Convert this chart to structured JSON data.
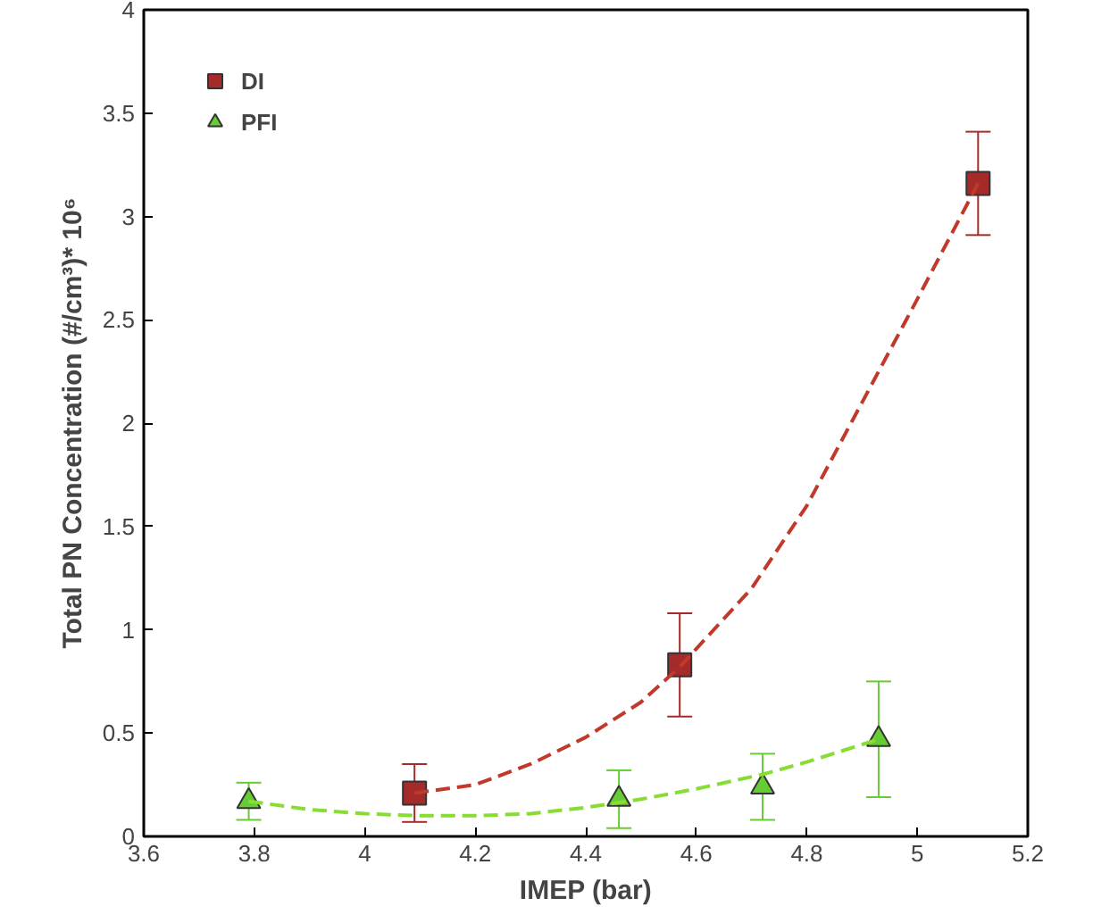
{
  "chart_data": {
    "type": "scatter",
    "xlabel": "IMEP (bar)",
    "ylabel": "Total PN Concentration (#/cm³)* 10⁶",
    "xlim": [
      3.6,
      5.2
    ],
    "xticks": [
      3.6,
      3.8,
      4,
      4.2,
      4.4,
      4.6,
      4.8,
      5,
      5.2
    ],
    "ylim": [
      0,
      4
    ],
    "yticks": [
      0,
      0.5,
      1,
      1.5,
      2,
      2.5,
      3,
      3.5,
      4
    ],
    "grid": false,
    "legend": "top left",
    "series": [
      {
        "name": "DI",
        "marker": "square",
        "color": "#a52a2a",
        "x": [
          4.09,
          4.57,
          5.11
        ],
        "values": [
          0.21,
          0.83,
          3.16
        ],
        "errors": [
          0.14,
          0.25,
          0.25
        ]
      },
      {
        "name": "PFI",
        "marker": "triangle",
        "color": "#66cc33",
        "x": [
          3.79,
          4.46,
          4.72,
          4.93
        ],
        "values": [
          0.17,
          0.18,
          0.24,
          0.47
        ],
        "errors": [
          0.09,
          0.14,
          0.16,
          0.28
        ]
      },
      {
        "type": "line",
        "line_style": "dashed",
        "color": "#c0392b",
        "x": [
          4.09,
          4.2,
          4.3,
          4.4,
          4.5,
          4.57,
          4.7,
          4.8,
          4.9,
          5.0,
          5.11
        ],
        "values": [
          0.21,
          0.25,
          0.35,
          0.48,
          0.65,
          0.82,
          1.2,
          1.6,
          2.1,
          2.6,
          3.16
        ]
      },
      {
        "type": "line",
        "line_style": "dashed",
        "color": "#88dd33",
        "x": [
          3.79,
          3.9,
          4.0,
          4.1,
          4.2,
          4.3,
          4.4,
          4.5,
          4.6,
          4.72,
          4.8,
          4.93
        ],
        "values": [
          0.17,
          0.13,
          0.11,
          0.1,
          0.1,
          0.11,
          0.14,
          0.18,
          0.23,
          0.3,
          0.36,
          0.47
        ]
      }
    ]
  }
}
